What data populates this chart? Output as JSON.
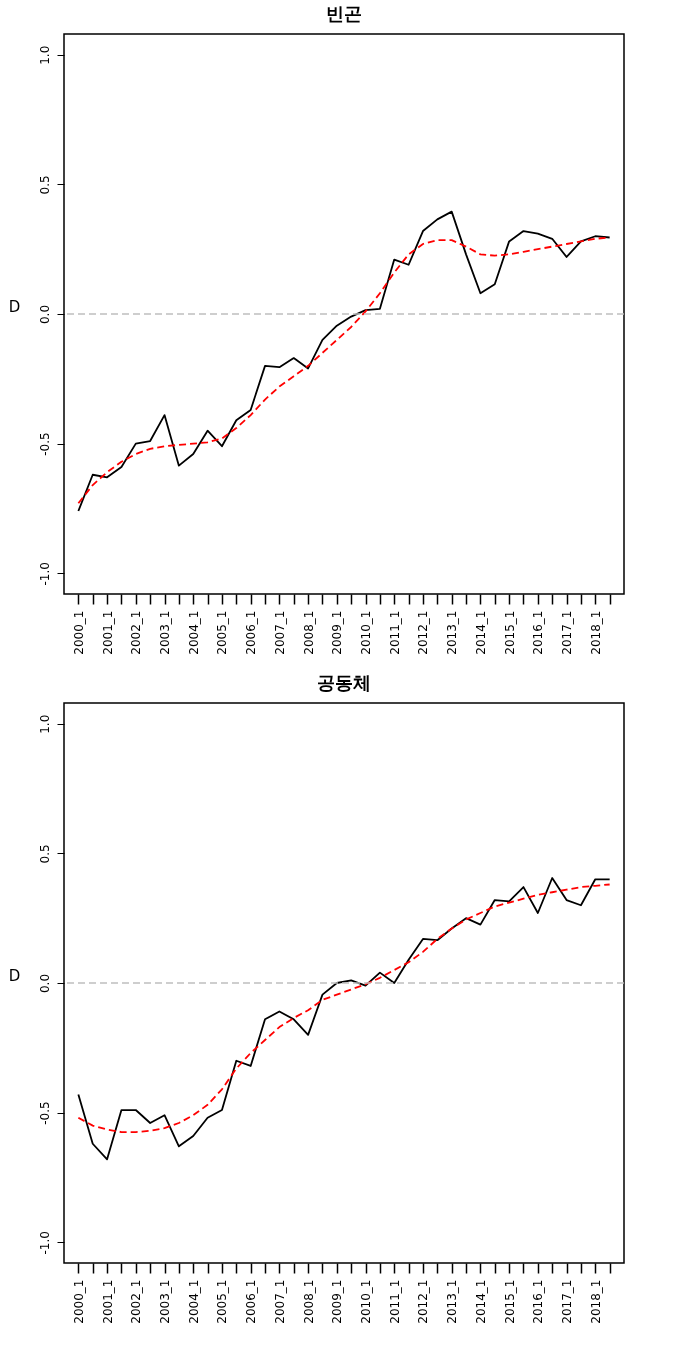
{
  "chart_data": [
    {
      "type": "line",
      "title": "빈곤",
      "ylabel": "D",
      "categories": [
        "2000_1",
        null,
        "2001_1",
        null,
        "2002_1",
        null,
        "2003_1",
        null,
        "2004_1",
        null,
        "2005_1",
        null,
        "2006_1",
        null,
        "2007_1",
        null,
        "2008_1",
        null,
        "2009_1",
        null,
        "2010_1",
        null,
        "2011_1",
        null,
        "2012_1",
        null,
        "2013_1",
        null,
        "2014_1",
        null,
        "2015_1",
        null,
        "2016_1",
        null,
        "2017_1",
        null,
        "2018_1",
        null
      ],
      "series": [
        {
          "color": "#000000",
          "line_style": "solid",
          "values": [
            -0.76,
            -0.62,
            -0.63,
            -0.59,
            -0.5,
            -0.49,
            -0.39,
            -0.585,
            -0.54,
            -0.45,
            -0.51,
            -0.41,
            -0.37,
            -0.2,
            -0.205,
            -0.17,
            -0.21,
            -0.1,
            -0.045,
            -0.01,
            0.015,
            0.02,
            0.21,
            0.19,
            0.32,
            0.365,
            0.395,
            0.23,
            0.08,
            0.115,
            0.28,
            0.32,
            0.31,
            0.29,
            0.22,
            0.28,
            0.3,
            0.295
          ]
        },
        {
          "color": "#ff0000",
          "line_style": "dashed",
          "values": [
            -0.73,
            -0.66,
            -0.61,
            -0.57,
            -0.54,
            -0.52,
            -0.51,
            -0.505,
            -0.5,
            -0.495,
            -0.48,
            -0.44,
            -0.39,
            -0.33,
            -0.28,
            -0.24,
            -0.2,
            -0.15,
            -0.1,
            -0.05,
            0.01,
            0.08,
            0.16,
            0.23,
            0.27,
            0.285,
            0.285,
            0.26,
            0.23,
            0.225,
            0.23,
            0.24,
            0.25,
            0.26,
            0.27,
            0.28,
            0.29,
            0.295
          ]
        }
      ],
      "ylim": [
        -1.08,
        1.08
      ],
      "yticks": [
        {
          "value": -1,
          "label": "-1.0"
        },
        {
          "value": -0.5,
          "label": "-0.5"
        },
        {
          "value": 0,
          "label": "0.0"
        },
        {
          "value": 0.5,
          "label": "0.5"
        },
        {
          "value": 1,
          "label": "1.0"
        }
      ],
      "ref_lines": [
        {
          "axis": "y",
          "value": 0,
          "color": "#bebebe",
          "line_style": "dashed"
        }
      ],
      "grid": false
    },
    {
      "type": "line",
      "title": "공동체",
      "ylabel": "D",
      "categories": [
        "2000_1",
        null,
        "2001_1",
        null,
        "2002_1",
        null,
        "2003_1",
        null,
        "2004_1",
        null,
        "2005_1",
        null,
        "2006_1",
        null,
        "2007_1",
        null,
        "2008_1",
        null,
        "2009_1",
        null,
        "2010_1",
        null,
        "2011_1",
        null,
        "2012_1",
        null,
        "2013_1",
        null,
        "2014_1",
        null,
        "2015_1",
        null,
        "2016_1",
        null,
        "2017_1",
        null,
        "2018_1",
        null
      ],
      "series": [
        {
          "color": "#000000",
          "line_style": "solid",
          "values": [
            -0.43,
            -0.62,
            -0.68,
            -0.49,
            -0.49,
            -0.54,
            -0.51,
            -0.63,
            -0.59,
            -0.52,
            -0.49,
            -0.3,
            -0.32,
            -0.14,
            -0.11,
            -0.14,
            -0.2,
            -0.045,
            0.0,
            0.01,
            -0.01,
            0.04,
            0.0,
            0.09,
            0.17,
            0.165,
            0.21,
            0.25,
            0.225,
            0.32,
            0.315,
            0.37,
            0.27,
            0.405,
            0.32,
            0.3,
            0.4,
            0.4
          ]
        },
        {
          "color": "#ff0000",
          "line_style": "dashed",
          "values": [
            -0.52,
            -0.55,
            -0.565,
            -0.575,
            -0.575,
            -0.57,
            -0.56,
            -0.54,
            -0.51,
            -0.47,
            -0.41,
            -0.33,
            -0.27,
            -0.22,
            -0.17,
            -0.135,
            -0.105,
            -0.065,
            -0.045,
            -0.025,
            -0.005,
            0.02,
            0.05,
            0.08,
            0.12,
            0.17,
            0.21,
            0.245,
            0.27,
            0.295,
            0.31,
            0.325,
            0.34,
            0.35,
            0.36,
            0.37,
            0.375,
            0.38
          ]
        }
      ],
      "ylim": [
        -1.08,
        1.08
      ],
      "yticks": [
        {
          "value": -1,
          "label": "-1.0"
        },
        {
          "value": -0.5,
          "label": "-0.5"
        },
        {
          "value": 0,
          "label": "0.0"
        },
        {
          "value": 0.5,
          "label": "0.5"
        },
        {
          "value": 1,
          "label": "1.0"
        }
      ],
      "ref_lines": [
        {
          "axis": "y",
          "value": 0,
          "color": "#bebebe",
          "line_style": "dashed"
        }
      ],
      "grid": false
    }
  ]
}
